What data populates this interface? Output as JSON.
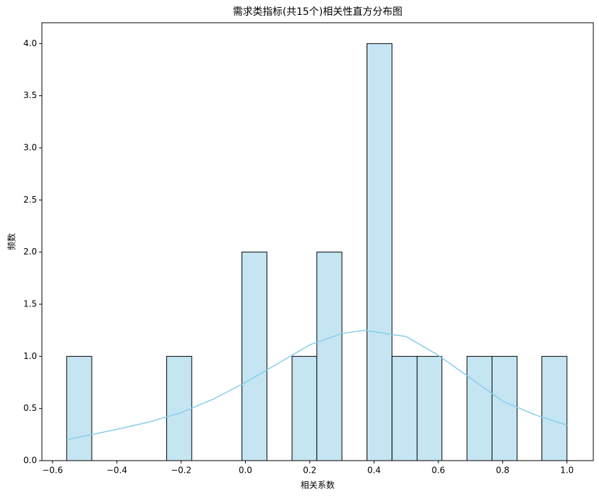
{
  "chart_data": {
    "type": "histogram",
    "title": "需求类指标(共15个)相关性直方分布图",
    "xlabel": "相关系数",
    "ylabel": "频数",
    "bins": [
      -0.556,
      -0.478,
      -0.4,
      -0.323,
      -0.245,
      -0.167,
      -0.089,
      -0.011,
      0.067,
      0.145,
      0.222,
      0.3,
      0.378,
      0.456,
      0.534,
      0.611,
      0.689,
      0.767,
      0.845,
      0.922,
      1.0
    ],
    "counts": [
      1,
      0,
      0,
      0,
      1,
      0,
      0,
      2,
      0,
      1,
      2,
      0,
      4,
      1,
      1,
      0,
      1,
      1,
      0,
      1
    ],
    "color": "#c5e5f3",
    "edgecolor": "#000000",
    "kde": {
      "color": "#87ceeb",
      "x": [
        -0.556,
        -0.4,
        -0.3,
        -0.2,
        -0.1,
        0.0,
        0.1,
        0.2,
        0.3,
        0.37,
        0.5,
        0.6,
        0.7,
        0.8,
        0.9,
        1.0
      ],
      "y": [
        0.2,
        0.3,
        0.37,
        0.46,
        0.59,
        0.75,
        0.93,
        1.11,
        1.22,
        1.25,
        1.19,
        1.01,
        0.79,
        0.57,
        0.44,
        0.34
      ]
    },
    "xlim": [
      -0.633,
      1.082
    ],
    "ylim": [
      0,
      4.2
    ],
    "xticks": [
      {
        "value": -0.6,
        "label": "−0.6"
      },
      {
        "value": -0.4,
        "label": "−0.4"
      },
      {
        "value": -0.2,
        "label": "−0.2"
      },
      {
        "value": 0,
        "label": "0.0"
      },
      {
        "value": 0.2,
        "label": "0.2"
      },
      {
        "value": 0.4,
        "label": "0.4"
      },
      {
        "value": 0.6,
        "label": "0.6"
      },
      {
        "value": 0.8,
        "label": "0.8"
      },
      {
        "value": 1,
        "label": "1.0"
      }
    ],
    "yticks": [
      {
        "value": 0,
        "label": "0.0"
      },
      {
        "value": 0.5,
        "label": "0.5"
      },
      {
        "value": 1,
        "label": "1.0"
      },
      {
        "value": 1.5,
        "label": "1.5"
      },
      {
        "value": 2,
        "label": "2.0"
      },
      {
        "value": 2.5,
        "label": "2.5"
      },
      {
        "value": 3,
        "label": "3.0"
      },
      {
        "value": 3.5,
        "label": "3.5"
      },
      {
        "value": 4,
        "label": "4.0"
      }
    ]
  }
}
